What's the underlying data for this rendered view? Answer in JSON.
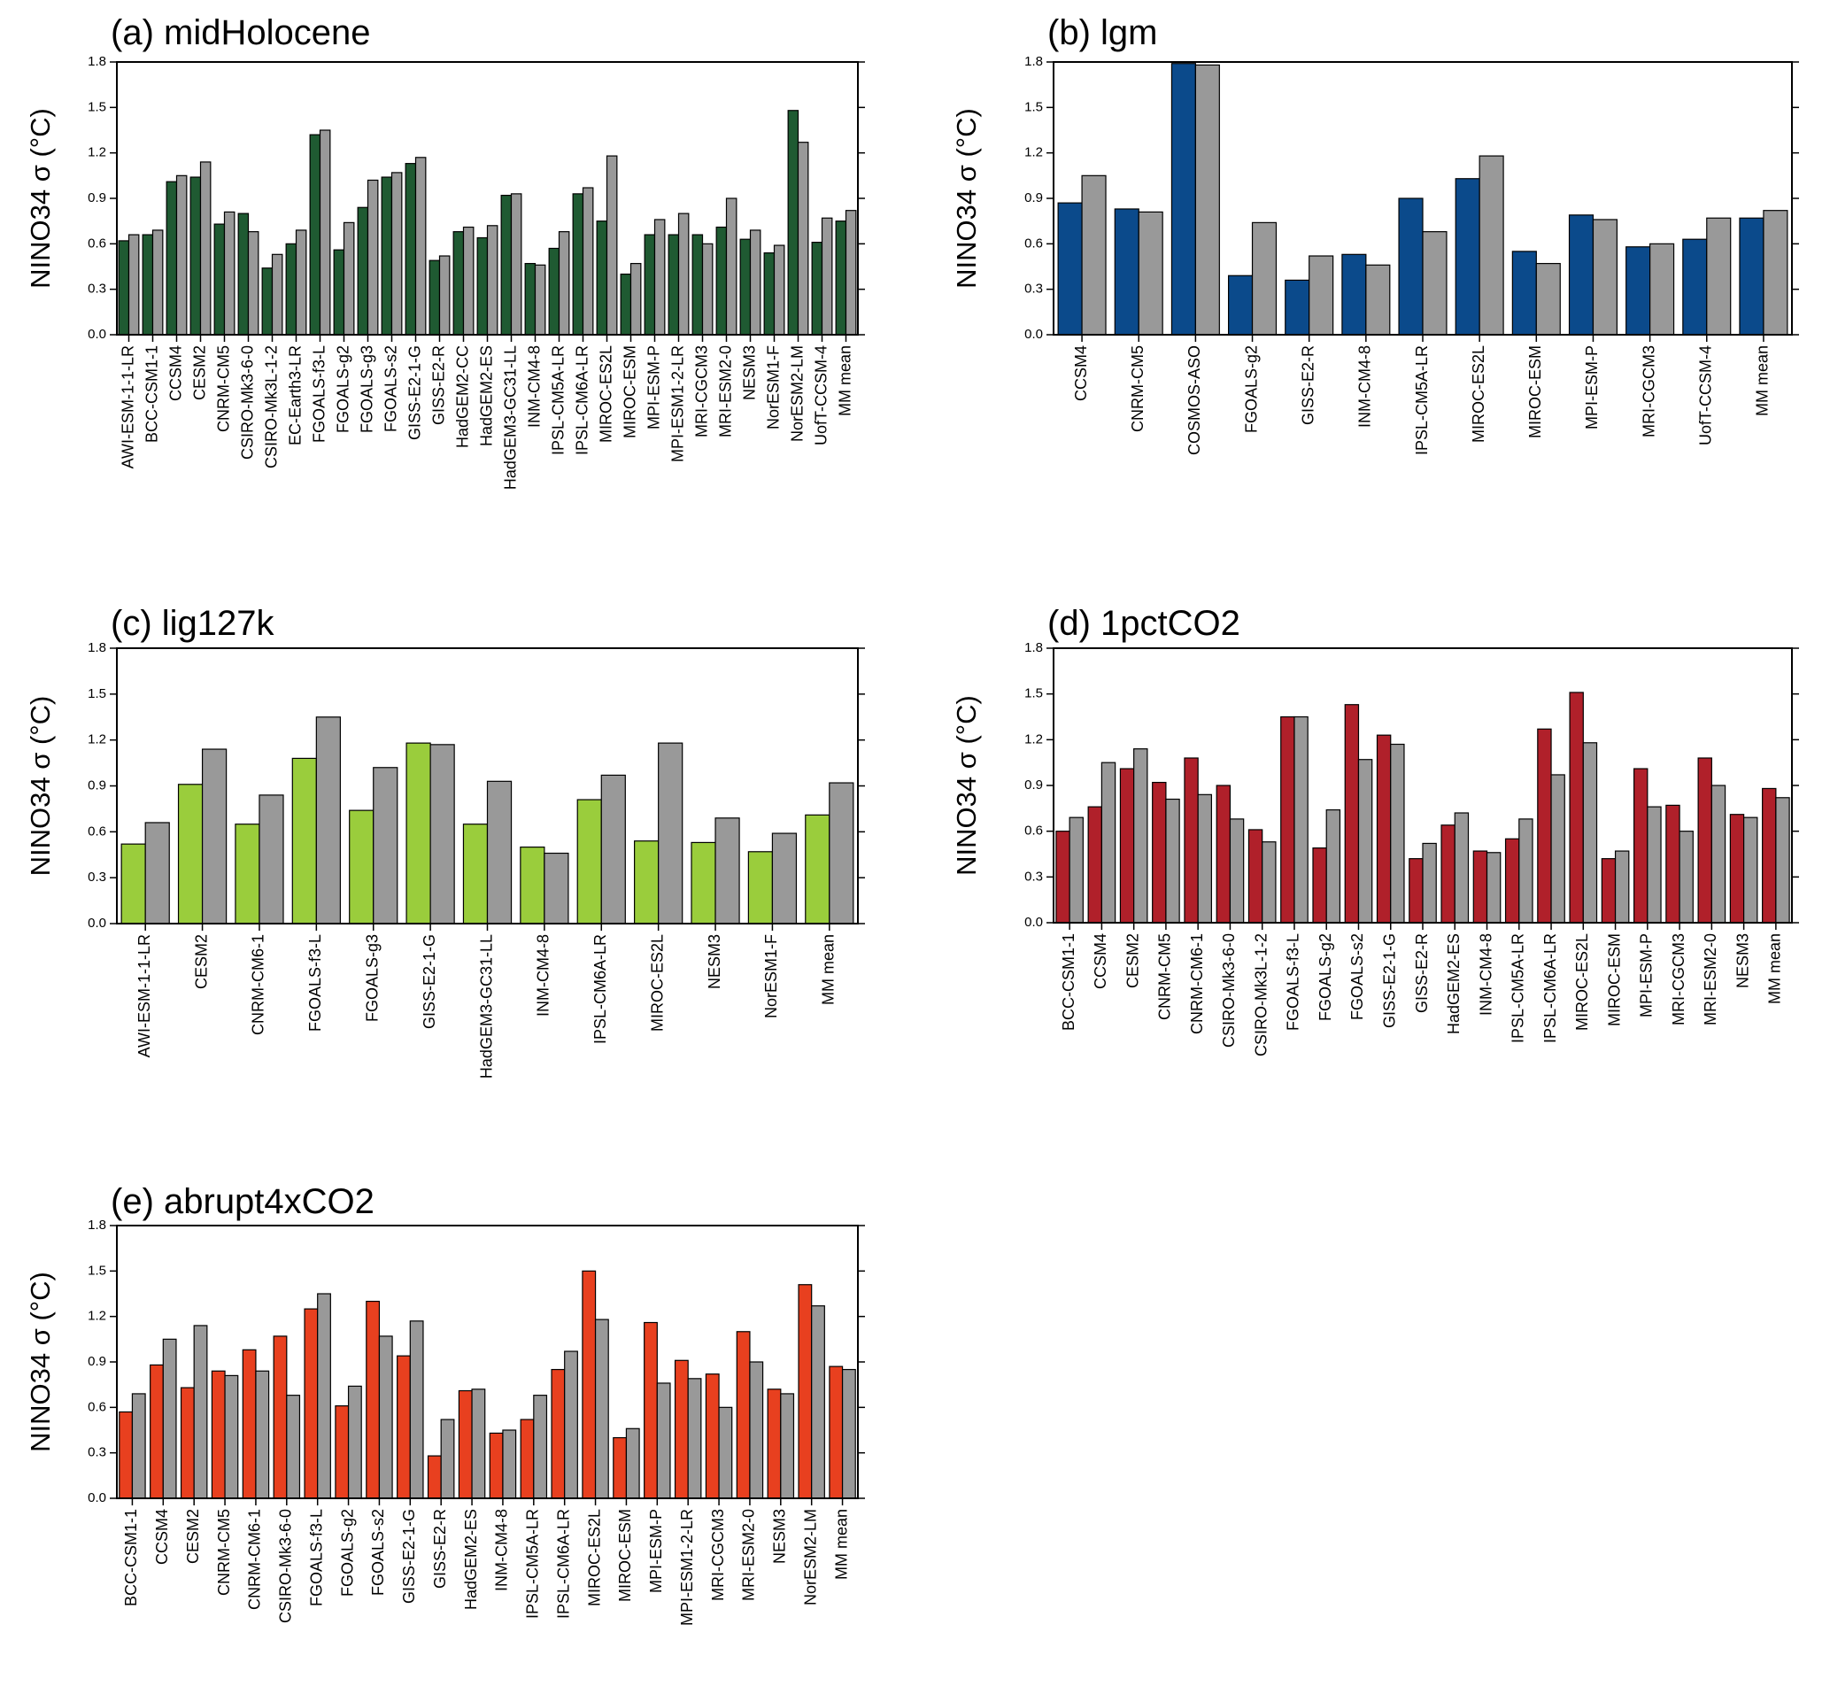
{
  "chart_data": [
    {
      "type": "bar",
      "title": "(a) midHolocene",
      "ylabel": "NINO34 σ (°C)",
      "categories": [
        "AWI-ESM-1-1-LR",
        "BCC-CSM1-1",
        "CCSM4",
        "CESM2",
        "CNRM-CM5",
        "CSIRO-Mk3-6-0",
        "CSIRO-Mk3L-1-2",
        "EC-Earth3-LR",
        "FGOALS-f3-L",
        "FGOALS-g2",
        "FGOALS-g3",
        "FGOALS-s2",
        "GISS-E2-1-G",
        "GISS-E2-R",
        "HadGEM2-CC",
        "HadGEM2-ES",
        "HadGEM3-GC31-LL",
        "INM-CM4-8",
        "IPSL-CM5A-LR",
        "IPSL-CM6A-LR",
        "MIROC-ES2L",
        "MIROC-ESM",
        "MPI-ESM-P",
        "MPI-ESM1-2-LR",
        "MRI-CGCM3",
        "MRI-ESM2-0",
        "NESM3",
        "NorESM1-F",
        "NorESM2-LM",
        "UofT-CCSM-4",
        "MM mean"
      ],
      "series": [
        {
          "color": "#1f5a32",
          "values": [
            0.62,
            0.66,
            1.01,
            1.04,
            0.73,
            0.8,
            0.44,
            0.6,
            1.32,
            0.56,
            0.84,
            1.04,
            1.13,
            0.49,
            0.68,
            0.64,
            0.92,
            0.47,
            0.57,
            0.93,
            0.75,
            0.4,
            0.66,
            0.66,
            0.66,
            0.71,
            0.63,
            0.54,
            1.48,
            0.61,
            0.75
          ]
        },
        {
          "color": "#999999",
          "values": [
            0.66,
            0.69,
            1.05,
            1.14,
            0.81,
            0.68,
            0.53,
            0.69,
            1.35,
            0.74,
            1.02,
            1.07,
            1.17,
            0.52,
            0.71,
            0.72,
            0.93,
            0.46,
            0.68,
            0.97,
            1.18,
            0.47,
            0.76,
            0.8,
            0.6,
            0.9,
            0.69,
            0.59,
            1.27,
            0.77,
            0.82
          ]
        }
      ],
      "ylim": [
        0,
        1.8
      ],
      "yticks": [
        {
          "value": 0,
          "label": "0.0"
        },
        0.3,
        0.6,
        0.9,
        1.2,
        1.5,
        1.8
      ]
    },
    {
      "type": "bar",
      "title": "(b) lgm",
      "ylabel": "NINO34 σ (°C)",
      "categories": [
        "CCSM4",
        "CNRM-CM5",
        "COSMOS-ASO",
        "FGOALS-g2",
        "GISS-E2-R",
        "INM-CM4-8",
        "IPSL-CM5A-LR",
        "MIROC-ES2L",
        "MIROC-ESM",
        "MPI-ESM-P",
        "MRI-CGCM3",
        "UofT-CCSM-4",
        "MM mean"
      ],
      "series": [
        {
          "color": "#0b4a8b",
          "values": [
            0.87,
            0.83,
            1.79,
            0.39,
            0.36,
            0.53,
            0.9,
            1.03,
            0.55,
            0.79,
            0.58,
            0.63,
            0.77
          ]
        },
        {
          "color": "#999999",
          "values": [
            1.05,
            0.81,
            1.78,
            0.74,
            0.52,
            0.46,
            0.68,
            1.18,
            0.47,
            0.76,
            0.6,
            0.77,
            0.82
          ]
        }
      ],
      "ylim": [
        0,
        1.8
      ],
      "yticks": [
        {
          "value": 0,
          "label": "0.0"
        },
        0.3,
        0.6,
        0.9,
        1.2,
        1.5,
        1.8
      ]
    },
    {
      "type": "bar",
      "title": "(c) lig127k",
      "ylabel": "NINO34 σ (°C)",
      "categories": [
        "AWI-ESM-1-1-LR",
        "CESM2",
        "CNRM-CM6-1",
        "FGOALS-f3-L",
        "FGOALS-g3",
        "GISS-E2-1-G",
        "HadGEM3-GC31-LL",
        "INM-CM4-8",
        "IPSL-CM6A-LR",
        "MIROC-ES2L",
        "NESM3",
        "NorESM1-F",
        "MM mean"
      ],
      "series": [
        {
          "color": "#9acd3c",
          "values": [
            0.52,
            0.91,
            0.65,
            1.08,
            0.74,
            1.18,
            0.65,
            0.5,
            0.81,
            0.54,
            0.53,
            0.47,
            0.71
          ]
        },
        {
          "color": "#999999",
          "values": [
            0.66,
            1.14,
            0.84,
            1.35,
            1.02,
            1.17,
            0.93,
            0.46,
            0.97,
            1.18,
            0.69,
            0.59,
            0.92
          ]
        }
      ],
      "ylim": [
        0,
        1.8
      ],
      "yticks": [
        {
          "value": 0,
          "label": "0.0"
        },
        0.3,
        0.6,
        0.9,
        1.2,
        1.5,
        1.8
      ]
    },
    {
      "type": "bar",
      "title": "(d) 1pctCO2",
      "ylabel": "NINO34 σ (°C)",
      "categories": [
        "BCC-CSM1-1",
        "CCSM4",
        "CESM2",
        "CNRM-CM5",
        "CNRM-CM6-1",
        "CSIRO-Mk3-6-0",
        "CSIRO-Mk3L-1-2",
        "FGOALS-f3-L",
        "FGOALS-g2",
        "FGOALS-s2",
        "GISS-E2-1-G",
        "GISS-E2-R",
        "HadGEM2-ES",
        "INM-CM4-8",
        "IPSL-CM5A-LR",
        "IPSL-CM6A-LR",
        "MIROC-ES2L",
        "MIROC-ESM",
        "MPI-ESM-P",
        "MRI-CGCM3",
        "MRI-ESM2-0",
        "NESM3",
        "MM mean"
      ],
      "series": [
        {
          "color": "#b0202a",
          "values": [
            0.6,
            0.76,
            1.01,
            0.92,
            1.08,
            0.9,
            0.61,
            1.35,
            0.49,
            1.43,
            1.23,
            0.42,
            0.64,
            0.47,
            0.55,
            1.27,
            1.51,
            0.42,
            1.01,
            0.77,
            1.08,
            0.71,
            0.88
          ]
        },
        {
          "color": "#999999",
          "values": [
            0.69,
            1.05,
            1.14,
            0.81,
            0.84,
            0.68,
            0.53,
            1.35,
            0.74,
            1.07,
            1.17,
            0.52,
            0.72,
            0.46,
            0.68,
            0.97,
            1.18,
            0.47,
            0.76,
            0.6,
            0.9,
            0.69,
            0.82
          ]
        }
      ],
      "ylim": [
        0,
        1.8
      ],
      "yticks": [
        {
          "value": 0,
          "label": "0.0"
        },
        0.3,
        0.6,
        0.9,
        1.2,
        1.5,
        1.8
      ]
    },
    {
      "type": "bar",
      "title": "(e) abrupt4xCO2",
      "ylabel": "NINO34 σ (°C)",
      "categories": [
        "BCC-CSM1-1",
        "CCSM4",
        "CESM2",
        "CNRM-CM5",
        "CNRM-CM6-1",
        "CSIRO-Mk3-6-0",
        "FGOALS-f3-L",
        "FGOALS-g2",
        "FGOALS-s2",
        "GISS-E2-1-G",
        "GISS-E2-R",
        "HadGEM2-ES",
        "INM-CM4-8",
        "IPSL-CM5A-LR",
        "IPSL-CM6A-LR",
        "MIROC-ES2L",
        "MIROC-ESM",
        "MPI-ESM-P",
        "MPI-ESM1-2-LR",
        "MRI-CGCM3",
        "MRI-ESM2-0",
        "NESM3",
        "NorESM2-LM",
        "MM mean"
      ],
      "series": [
        {
          "color": "#e8401f",
          "values": [
            0.57,
            0.88,
            0.73,
            0.84,
            0.98,
            1.07,
            1.25,
            0.61,
            1.3,
            0.94,
            0.28,
            0.71,
            0.43,
            0.52,
            0.85,
            1.5,
            0.4,
            1.16,
            0.91,
            0.82,
            1.1,
            0.72,
            1.41,
            0.87
          ]
        },
        {
          "color": "#999999",
          "values": [
            0.69,
            1.05,
            1.14,
            0.81,
            0.84,
            0.68,
            1.35,
            0.74,
            1.07,
            1.17,
            0.52,
            0.72,
            0.45,
            0.68,
            0.97,
            1.18,
            0.46,
            0.76,
            0.79,
            0.6,
            0.9,
            0.69,
            1.27,
            0.85
          ]
        }
      ],
      "ylim": [
        0,
        1.8
      ],
      "yticks": [
        {
          "value": 0,
          "label": "0.0"
        },
        0.3,
        0.6,
        0.9,
        1.2,
        1.5,
        1.8
      ]
    }
  ]
}
